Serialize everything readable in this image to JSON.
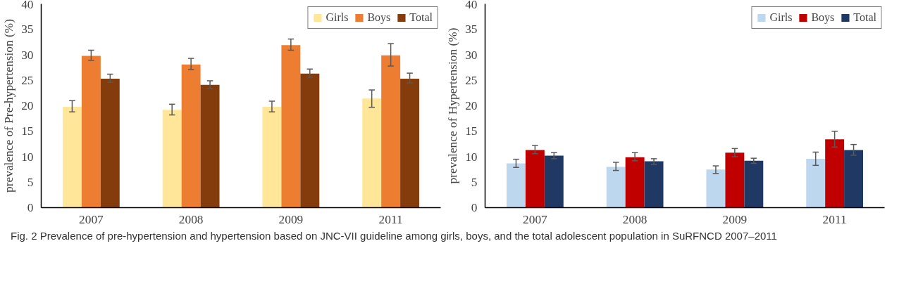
{
  "chart_data": [
    {
      "type": "bar",
      "ylabel": "prevalence of Pre-hypertension (%)",
      "categories": [
        "2007",
        "2008",
        "2009",
        "2011"
      ],
      "ylim": [
        0,
        40
      ],
      "yticks": [
        0,
        5,
        10,
        15,
        20,
        25,
        30,
        35,
        40
      ],
      "grid": false,
      "legend": "top right",
      "series": [
        {
          "name": "Girls",
          "color": "#ffe699",
          "values": [
            19.8,
            19.2,
            19.8,
            21.4
          ],
          "errors": [
            [
              18.8,
              21.0
            ],
            [
              18.2,
              20.3
            ],
            [
              18.8,
              20.9
            ],
            [
              19.7,
              23.1
            ]
          ]
        },
        {
          "name": "Boys",
          "color": "#ed7d31",
          "values": [
            29.8,
            28.1,
            31.9,
            29.9
          ],
          "errors": [
            [
              28.9,
              30.9
            ],
            [
              27.1,
              29.3
            ],
            [
              30.9,
              33.1
            ],
            [
              27.8,
              32.2
            ]
          ]
        },
        {
          "name": "Total",
          "color": "#843c0c",
          "values": [
            25.3,
            24.1,
            26.3,
            25.3
          ],
          "errors": [
            [
              24.6,
              26.2
            ],
            [
              23.4,
              24.9
            ],
            [
              25.6,
              27.2
            ],
            [
              24.5,
              26.4
            ]
          ]
        }
      ],
      "annotations": [
        "Fig. 2 Prevalence of pre-hypertension and hypertension based on JNC-VII guideline among girls, boys, and the total adolescent population in SuRFNCD 2007–2011"
      ]
    },
    {
      "type": "bar",
      "ylabel": "prevalence of Hypertension (%)",
      "categories": [
        "2007",
        "2008",
        "2009",
        "2011"
      ],
      "ylim": [
        0,
        40
      ],
      "yticks": [
        0,
        5,
        10,
        15,
        20,
        25,
        30,
        35,
        40
      ],
      "grid": false,
      "legend": "top right",
      "series": [
        {
          "name": "Girls",
          "color": "#bdd7ee",
          "values": [
            8.7,
            8.0,
            7.5,
            9.6
          ],
          "errors": [
            [
              7.9,
              9.5
            ],
            [
              7.3,
              8.9
            ],
            [
              6.7,
              8.2
            ],
            [
              8.3,
              10.9
            ]
          ]
        },
        {
          "name": "Boys",
          "color": "#c00000",
          "values": [
            11.3,
            9.9,
            10.8,
            13.4
          ],
          "errors": [
            [
              10.6,
              12.2
            ],
            [
              9.2,
              10.8
            ],
            [
              10.0,
              11.6
            ],
            [
              11.9,
              15.0
            ]
          ]
        },
        {
          "name": "Total",
          "color": "#203864",
          "values": [
            10.2,
            9.1,
            9.2,
            11.3
          ],
          "errors": [
            [
              9.6,
              10.8
            ],
            [
              8.5,
              9.6
            ],
            [
              8.7,
              9.7
            ],
            [
              10.3,
              12.4
            ]
          ]
        }
      ]
    }
  ]
}
